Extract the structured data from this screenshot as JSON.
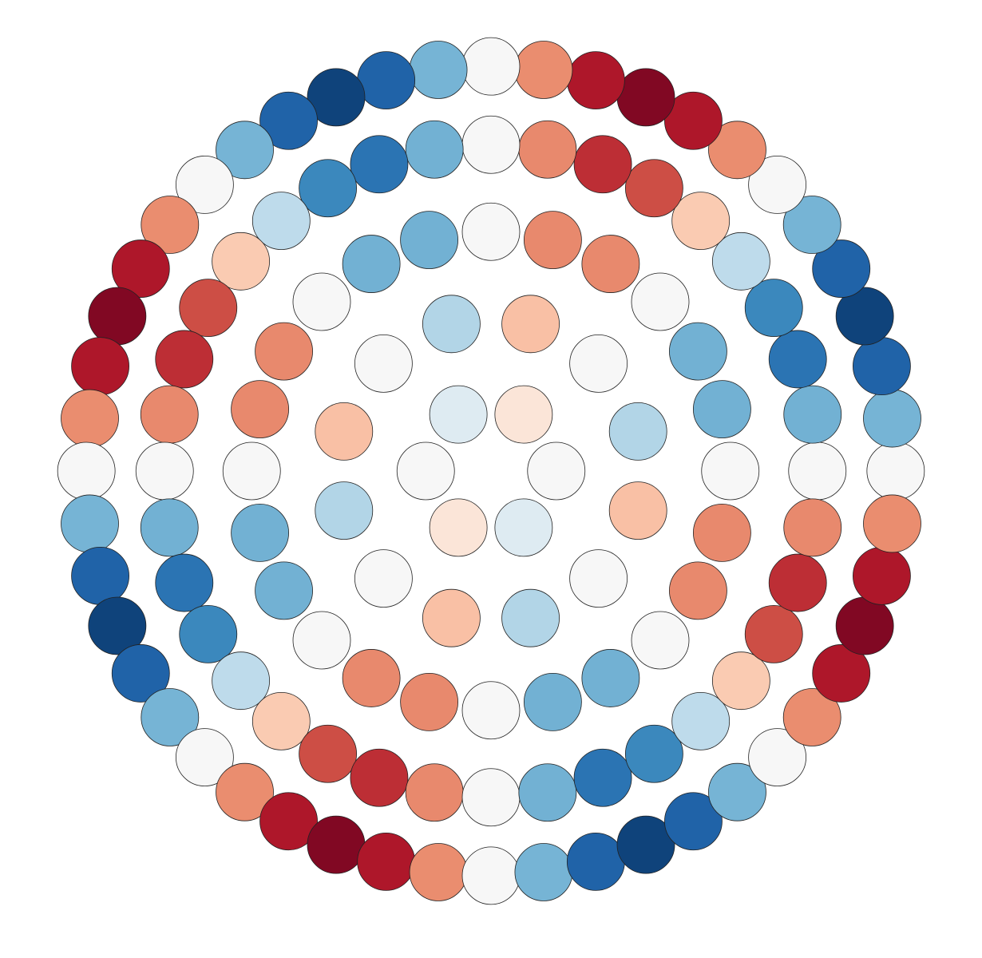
{
  "chart_data": {
    "type": "scatter",
    "colormap": "RdBu",
    "clim": [
      -1,
      1
    ],
    "xlim": [
      -1,
      1
    ],
    "ylim": [
      -1,
      1
    ],
    "edge_color": "#222222",
    "x": [
      0.15,
      0.075,
      -0.075,
      -0.15,
      -0.075,
      0.075,
      0.338,
      0.247,
      0.091,
      -0.091,
      -0.247,
      -0.338,
      -0.338,
      -0.247,
      -0.091,
      0.091,
      0.247,
      0.338,
      0.55,
      0.531,
      0.476,
      0.389,
      0.275,
      0.142,
      0,
      -0.142,
      -0.275,
      -0.389,
      -0.476,
      -0.531,
      -0.55,
      -0.531,
      -0.476,
      -0.389,
      -0.275,
      -0.142,
      0,
      0.142,
      0.275,
      0.389,
      0.476,
      0.531,
      0.75,
      0.739,
      0.705,
      0.65,
      0.575,
      0.482,
      0.375,
      0.257,
      0.13,
      0,
      -0.13,
      -0.257,
      -0.375,
      -0.482,
      -0.575,
      -0.65,
      -0.705,
      -0.739,
      -0.75,
      -0.739,
      -0.705,
      -0.65,
      -0.575,
      -0.482,
      -0.375,
      -0.257,
      -0.13,
      0,
      0.13,
      0.257,
      0.375,
      0.482,
      0.575,
      0.65,
      0.705,
      0.739,
      0.93,
      0.922,
      0.898,
      0.859,
      0.805,
      0.738,
      0.658,
      0.566,
      0.465,
      0.356,
      0.241,
      0.121,
      0,
      -0.121,
      -0.241,
      -0.356,
      -0.465,
      -0.566,
      -0.658,
      -0.738,
      -0.805,
      -0.859,
      -0.898,
      -0.922,
      -0.93,
      -0.922,
      -0.898,
      -0.859,
      -0.805,
      -0.738,
      -0.658,
      -0.566,
      -0.465,
      -0.356,
      -0.241,
      -0.121,
      0,
      0.121,
      0.241,
      0.356,
      0.465,
      0.566,
      0.658,
      0.738,
      0.805,
      0.859,
      0.898,
      0.922
    ],
    "y": [
      0,
      0.13,
      0.13,
      0,
      -0.13,
      -0.13,
      0.091,
      0.247,
      0.338,
      0.338,
      0.247,
      0.091,
      -0.091,
      -0.247,
      -0.338,
      -0.338,
      -0.247,
      -0.091,
      0,
      0.142,
      0.275,
      0.389,
      0.476,
      0.531,
      0.55,
      0.531,
      0.476,
      0.389,
      0.275,
      0.142,
      0,
      -0.142,
      -0.275,
      -0.389,
      -0.476,
      -0.531,
      -0.55,
      -0.531,
      -0.476,
      -0.389,
      -0.275,
      -0.142,
      0,
      0.13,
      0.257,
      0.375,
      0.482,
      0.575,
      0.65,
      0.705,
      0.739,
      0.75,
      0.739,
      0.705,
      0.65,
      0.575,
      0.482,
      0.375,
      0.257,
      0.13,
      0,
      -0.13,
      -0.257,
      -0.375,
      -0.482,
      -0.575,
      -0.65,
      -0.705,
      -0.739,
      -0.75,
      -0.739,
      -0.705,
      -0.65,
      -0.575,
      -0.482,
      -0.375,
      -0.257,
      -0.13,
      0,
      0.121,
      0.241,
      0.356,
      0.465,
      0.566,
      0.658,
      0.738,
      0.805,
      0.859,
      0.898,
      0.922,
      0.93,
      0.922,
      0.898,
      0.859,
      0.805,
      0.738,
      0.658,
      0.566,
      0.465,
      0.356,
      0.241,
      0.121,
      0,
      -0.121,
      -0.241,
      -0.356,
      -0.465,
      -0.566,
      -0.658,
      -0.738,
      -0.805,
      -0.859,
      -0.898,
      -0.922,
      -0.93,
      -0.922,
      -0.898,
      -0.859,
      -0.805,
      -0.738,
      -0.658,
      -0.566,
      -0.465,
      -0.356,
      -0.241,
      -0.121
    ],
    "values": [
      0,
      -0.13,
      0.13,
      0,
      -0.13,
      0.13,
      0.3,
      0,
      -0.3,
      0.3,
      0,
      -0.3,
      0.3,
      0,
      -0.3,
      0.3,
      0,
      -0.3,
      0,
      0.48,
      0.48,
      0,
      -0.48,
      -0.48,
      0,
      0.48,
      0.48,
      0,
      -0.48,
      -0.48,
      0,
      0.48,
      0.48,
      0,
      -0.48,
      -0.48,
      0,
      0.48,
      0.48,
      0,
      -0.48,
      -0.48,
      0,
      0.48,
      0.74,
      0.65,
      0.26,
      -0.26,
      -0.65,
      -0.74,
      -0.48,
      0,
      0.48,
      0.74,
      0.65,
      0.26,
      -0.26,
      -0.65,
      -0.74,
      -0.48,
      0,
      0.48,
      0.74,
      0.65,
      0.26,
      -0.26,
      -0.65,
      -0.74,
      -0.48,
      0,
      0.48,
      0.74,
      0.65,
      0.26,
      -0.26,
      -0.65,
      -0.74,
      -0.48,
      0,
      0.47,
      0.81,
      0.93,
      0.81,
      0.47,
      0,
      -0.47,
      -0.81,
      -0.93,
      -0.81,
      -0.47,
      0,
      0.47,
      0.81,
      0.93,
      0.81,
      0.47,
      0,
      -0.47,
      -0.81,
      -0.93,
      -0.81,
      -0.47,
      0,
      0.47,
      0.81,
      0.93,
      0.81,
      0.47,
      0,
      -0.47,
      -0.81,
      -0.93,
      -0.81,
      -0.47,
      0,
      0.47,
      0.81,
      0.93,
      0.81,
      0.47,
      0,
      -0.47,
      -0.81,
      -0.93,
      -0.81,
      -0.47
    ]
  }
}
